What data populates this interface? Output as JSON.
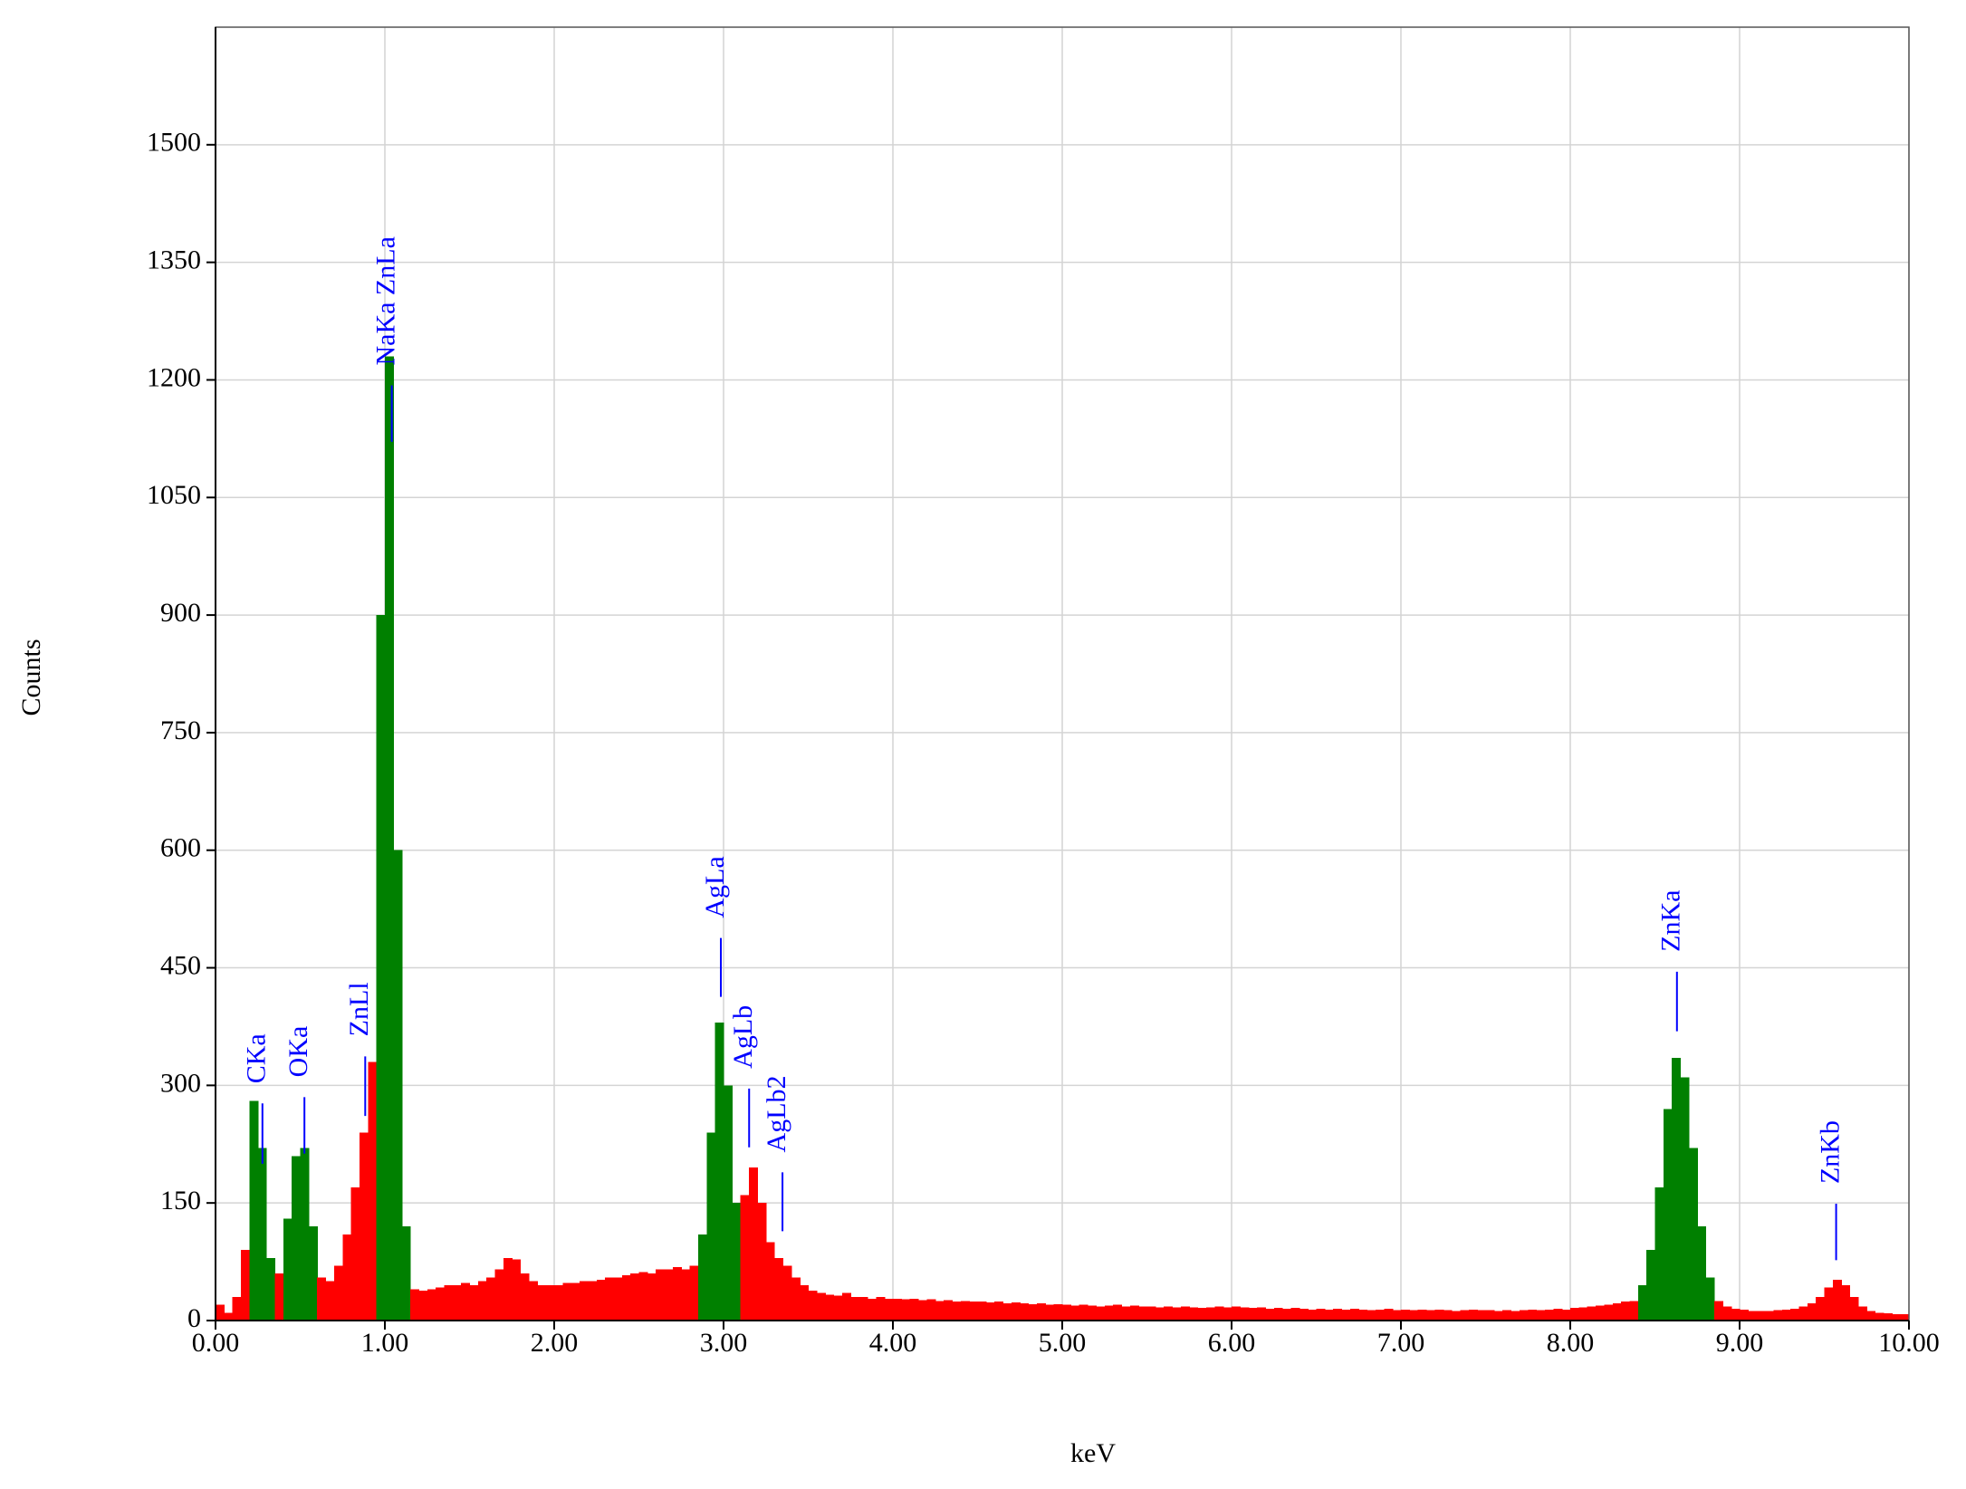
{
  "chart_data": {
    "type": "histogram",
    "x_label": "keV",
    "y_label": "Counts",
    "xlim": [
      0,
      10
    ],
    "ylim": [
      0,
      1650
    ],
    "xticks": [
      {
        "value": 0,
        "label": "0.00"
      },
      {
        "value": 1,
        "label": "1.00"
      },
      {
        "value": 2,
        "label": "2.00"
      },
      {
        "value": 3,
        "label": "3.00"
      },
      {
        "value": 4,
        "label": "4.00"
      },
      {
        "value": 5,
        "label": "5.00"
      },
      {
        "value": 6,
        "label": "6.00"
      },
      {
        "value": 7,
        "label": "7.00"
      },
      {
        "value": 8,
        "label": "8.00"
      },
      {
        "value": 9,
        "label": "9.00"
      },
      {
        "value": 10,
        "label": "10.00"
      }
    ],
    "yticks": [
      0,
      150,
      300,
      450,
      600,
      750,
      900,
      1050,
      1200,
      1350,
      1500
    ],
    "grid": true,
    "color": "#ff0000",
    "peak_color": "#008000",
    "annotation_color": "#0000ff",
    "peak_regions": [
      [
        0.2,
        0.37
      ],
      [
        0.4,
        0.6
      ],
      [
        0.93,
        1.14
      ],
      [
        2.84,
        3.12
      ],
      [
        8.4,
        8.85
      ]
    ],
    "bins": [
      0,
      0.05,
      0.1,
      0.15,
      0.2,
      0.25,
      0.3,
      0.35,
      0.4,
      0.45,
      0.5,
      0.55,
      0.6,
      0.65,
      0.7,
      0.75,
      0.8,
      0.85,
      0.9,
      0.95,
      1,
      1.05,
      1.1,
      1.15,
      1.2,
      1.25,
      1.3,
      1.35,
      1.4,
      1.45,
      1.5,
      1.55,
      1.6,
      1.65,
      1.7,
      1.75,
      1.8,
      1.85,
      1.9,
      1.95,
      2,
      2.05,
      2.1,
      2.15,
      2.2,
      2.25,
      2.3,
      2.35,
      2.4,
      2.45,
      2.5,
      2.55,
      2.6,
      2.65,
      2.7,
      2.75,
      2.8,
      2.85,
      2.9,
      2.95,
      3,
      3.05,
      3.1,
      3.15,
      3.2,
      3.25,
      3.3,
      3.35,
      3.4,
      3.45,
      3.5,
      3.55,
      3.6,
      3.65,
      3.7,
      3.75,
      3.8,
      3.85,
      3.9,
      3.95,
      4,
      4.05,
      4.1,
      4.15,
      4.2,
      4.25,
      4.3,
      4.35,
      4.4,
      4.45,
      4.5,
      4.55,
      4.6,
      4.65,
      4.7,
      4.75,
      4.8,
      4.85,
      4.9,
      4.95,
      5,
      5.05,
      5.1,
      5.15,
      5.2,
      5.25,
      5.3,
      5.35,
      5.4,
      5.45,
      5.5,
      5.55,
      5.6,
      5.65,
      5.7,
      5.75,
      5.8,
      5.85,
      5.9,
      5.95,
      6,
      6.05,
      6.1,
      6.15,
      6.2,
      6.25,
      6.3,
      6.35,
      6.4,
      6.45,
      6.5,
      6.55,
      6.6,
      6.65,
      6.7,
      6.75,
      6.8,
      6.85,
      6.9,
      6.95,
      7,
      7.05,
      7.1,
      7.15,
      7.2,
      7.25,
      7.3,
      7.35,
      7.4,
      7.45,
      7.5,
      7.55,
      7.6,
      7.65,
      7.7,
      7.75,
      7.8,
      7.85,
      7.9,
      7.95,
      8,
      8.05,
      8.1,
      8.15,
      8.2,
      8.25,
      8.3,
      8.35,
      8.4,
      8.45,
      8.5,
      8.55,
      8.6,
      8.65,
      8.7,
      8.75,
      8.8,
      8.85,
      8.9,
      8.95,
      9,
      9.05,
      9.1,
      9.15,
      9.2,
      9.25,
      9.3,
      9.35,
      9.4,
      9.45,
      9.5,
      9.55,
      9.6,
      9.65,
      9.7,
      9.75,
      9.8,
      9.85,
      9.9,
      9.95,
      10
    ],
    "values": [
      20,
      10,
      30,
      90,
      280,
      220,
      80,
      60,
      130,
      210,
      220,
      120,
      55,
      50,
      70,
      110,
      170,
      240,
      330,
      900,
      1230,
      600,
      120,
      40,
      38,
      40,
      42,
      45,
      45,
      48,
      45,
      50,
      55,
      65,
      80,
      78,
      60,
      50,
      45,
      45,
      45,
      48,
      48,
      50,
      50,
      52,
      55,
      55,
      58,
      60,
      62,
      60,
      65,
      65,
      68,
      65,
      70,
      110,
      240,
      380,
      300,
      150,
      160,
      195,
      150,
      100,
      80,
      70,
      55,
      45,
      38,
      35,
      33,
      32,
      35,
      30,
      30,
      28,
      30,
      28,
      28,
      27,
      28,
      26,
      27,
      25,
      26,
      24,
      25,
      24,
      24,
      23,
      24,
      22,
      23,
      22,
      21,
      22,
      20,
      21,
      20,
      19,
      20,
      19,
      18,
      19,
      20,
      18,
      19,
      18,
      18,
      17,
      18,
      17,
      18,
      17,
      16,
      17,
      18,
      17,
      18,
      17,
      16,
      17,
      15,
      16,
      15,
      16,
      15,
      14,
      15,
      14,
      15,
      14,
      15,
      14,
      13,
      14,
      15,
      13,
      14,
      13,
      14,
      13,
      14,
      13,
      12,
      13,
      14,
      13,
      13,
      12,
      13,
      12,
      13,
      14,
      13,
      14,
      15,
      14,
      16,
      17,
      18,
      19,
      20,
      22,
      24,
      25,
      45,
      90,
      170,
      270,
      335,
      310,
      220,
      120,
      55,
      25,
      18,
      15,
      14,
      12,
      12,
      12,
      13,
      14,
      15,
      18,
      22,
      30,
      42,
      52,
      45,
      30,
      18,
      12,
      10,
      9,
      8,
      8
    ],
    "annotations": [
      {
        "label": "CKa",
        "x": 0.277,
        "y": [
          200,
          277
        ]
      },
      {
        "label": "OKa",
        "x": 0.525,
        "y": [
          213,
          285
        ]
      },
      {
        "label": "ZnLl",
        "x": 0.884,
        "y": [
          261,
          337
        ]
      },
      {
        "label": "NaKa ZnLa",
        "x": 1.041,
        "y": [
          1121,
          1193
        ]
      },
      {
        "label": "AgLa",
        "x": 2.984,
        "y": [
          413,
          488
        ]
      },
      {
        "label": "AgLb",
        "x": 3.151,
        "y": [
          221,
          296
        ]
      },
      {
        "label": "AgLb2",
        "x": 3.348,
        "y": [
          114,
          189
        ]
      },
      {
        "label": "ZnKa",
        "x": 8.63,
        "y": [
          369,
          445
        ]
      },
      {
        "label": "ZnKb",
        "x": 9.57,
        "y": [
          77,
          149
        ]
      }
    ]
  }
}
